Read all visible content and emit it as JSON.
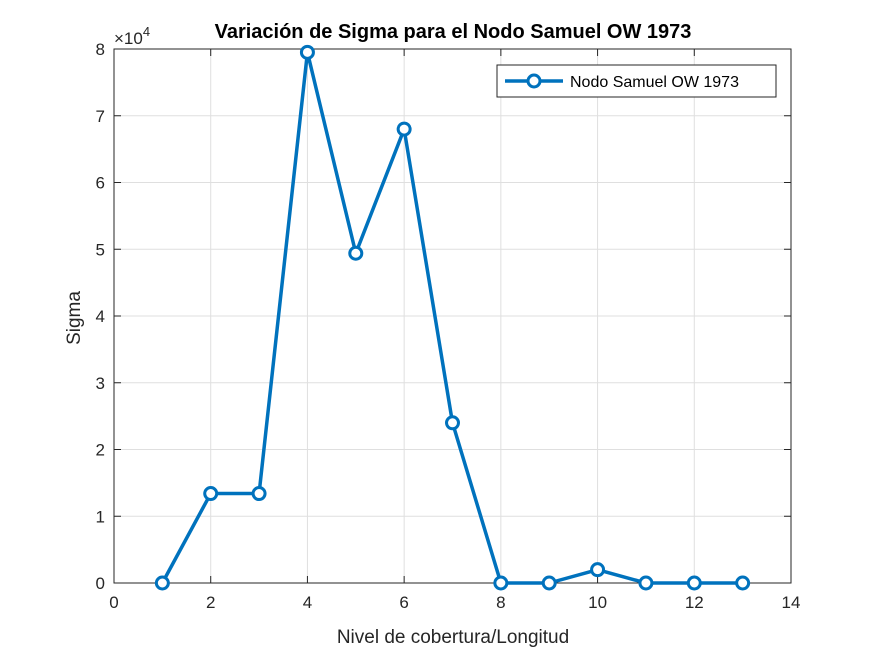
{
  "chart_data": {
    "type": "line",
    "title": "Variación de Sigma para el Nodo Samuel OW 1973",
    "xlabel": "Nivel de cobertura/Longitud",
    "ylabel": "Sigma",
    "xlim": [
      0,
      14
    ],
    "ylim": [
      0,
      8
    ],
    "xticks": [
      0,
      2,
      4,
      6,
      8,
      10,
      12,
      14
    ],
    "yticks": [
      0,
      1,
      2,
      3,
      4,
      5,
      6,
      7,
      8
    ],
    "y_multiplier_base": "×10",
    "y_multiplier_exponent": "4",
    "grid": true,
    "legend_position": "top-right",
    "series": [
      {
        "name": "Nodo Samuel OW 1973",
        "color": "#0072BD",
        "marker": "circle",
        "x": [
          1,
          2,
          3,
          4,
          5,
          6,
          7,
          8,
          9,
          10,
          11,
          12,
          13
        ],
        "y": [
          0,
          1.34,
          1.34,
          7.95,
          4.94,
          6.8,
          2.4,
          0,
          0,
          0.2,
          0,
          0,
          0
        ]
      }
    ]
  }
}
